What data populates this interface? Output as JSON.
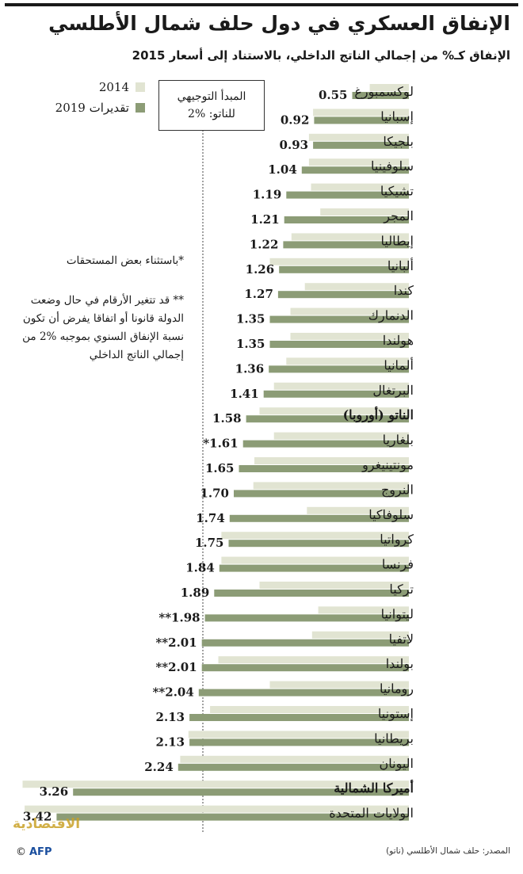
{
  "title": "الإنفاق العسكري في دول حلف شمال الأطلسي",
  "subtitle": "الإنفاق كـ% من إجمالي الناتج الداخلي، بالاستناد إلى أسعار 2015",
  "legend": {
    "items": [
      {
        "label": "2014",
        "color": "#e1e4d2"
      },
      {
        "label": "2019 تقديرات",
        "color": "#8c9c76"
      }
    ]
  },
  "guideline": {
    "line1": "المبدأ التوجيهي",
    "line2": "للناتو: %2"
  },
  "notes": {
    "note1": "*باستثناء بعض المستحقات",
    "note2": "** قد تتغير الأرقام في حال وضعت الدولة قانونا أو اتفاقا يفرض أن تكون نسبة الإنفاق السنوي بموجبه %2 من إجمالي الناتج الداخلي"
  },
  "footer": {
    "source": "المصدر: حلف شمال الأطلسي (ناتو)",
    "logo_text": "الاقتصادية",
    "agency": "AFP",
    "copyright_icon": "copyright-icon"
  },
  "colors": {
    "bar_2014": "#e1e4d2",
    "bar_2019": "#8c9c76",
    "text": "#1a1a1a",
    "accent_logo": "#c9a227"
  },
  "chart_data": {
    "type": "bar",
    "orientation": "horizontal",
    "categories": [
      "لوكسمبورغ",
      "إسبانيا",
      "بلجيكا",
      "سلوفينيا",
      "تشيكيا",
      "المجر",
      "إيطاليا",
      "ألبانيا",
      "كندا",
      "الدنمارك",
      "هولندا",
      "ألمانيا",
      "البرتغال",
      "الناتو (أوروبا)",
      "بلغاريا",
      "مونتينيغرو",
      "النروج",
      "سلوفاكيا",
      "كرواتيا",
      "فرنسا",
      "تركيا",
      "ليتوانيا",
      "لاتفيا",
      "بولندا",
      "رومانيا",
      "إستونيا",
      "بريطانيا",
      "اليونان",
      "أميركا الشمالية",
      "الولايات المتحدة"
    ],
    "bold_categories": [
      "الناتو (أوروبا)",
      "أميركا الشمالية"
    ],
    "series": [
      {
        "name": "2014",
        "values": [
          0.38,
          0.93,
          0.97,
          0.97,
          0.95,
          0.86,
          1.14,
          1.35,
          1.01,
          1.15,
          1.15,
          1.19,
          1.31,
          1.45,
          1.31,
          1.5,
          1.51,
          0.99,
          1.82,
          1.82,
          1.45,
          0.88,
          0.94,
          1.85,
          1.35,
          1.93,
          2.14,
          2.22,
          3.75,
          3.73
        ]
      },
      {
        "name": "2019 تقديرات",
        "values": [
          0.55,
          0.92,
          0.93,
          1.04,
          1.19,
          1.21,
          1.22,
          1.26,
          1.27,
          1.35,
          1.35,
          1.36,
          1.41,
          1.58,
          1.61,
          1.65,
          1.7,
          1.74,
          1.75,
          1.84,
          1.89,
          1.98,
          2.01,
          2.01,
          2.04,
          2.13,
          2.13,
          2.24,
          3.26,
          3.42
        ]
      }
    ],
    "value_labels": [
      "0.55",
      "0.92",
      "0.93",
      "1.04",
      "1.19",
      "1.21",
      "1.22",
      "1.26",
      "1.27",
      "1.35",
      "1.35",
      "1.36",
      "1.41",
      "1.58",
      "*1.61",
      "1.65",
      "1.70",
      "1.74",
      "1.75",
      "1.84",
      "1.89",
      "**1.98",
      "**2.01",
      "**2.01",
      "**2.04",
      "2.13",
      "2.13",
      "2.24",
      "3.26",
      "3.42"
    ],
    "reference_line": {
      "value": 2.0
    },
    "xlim": [
      0,
      3.8
    ],
    "axis_direction": "right-to-left",
    "grid": false
  }
}
